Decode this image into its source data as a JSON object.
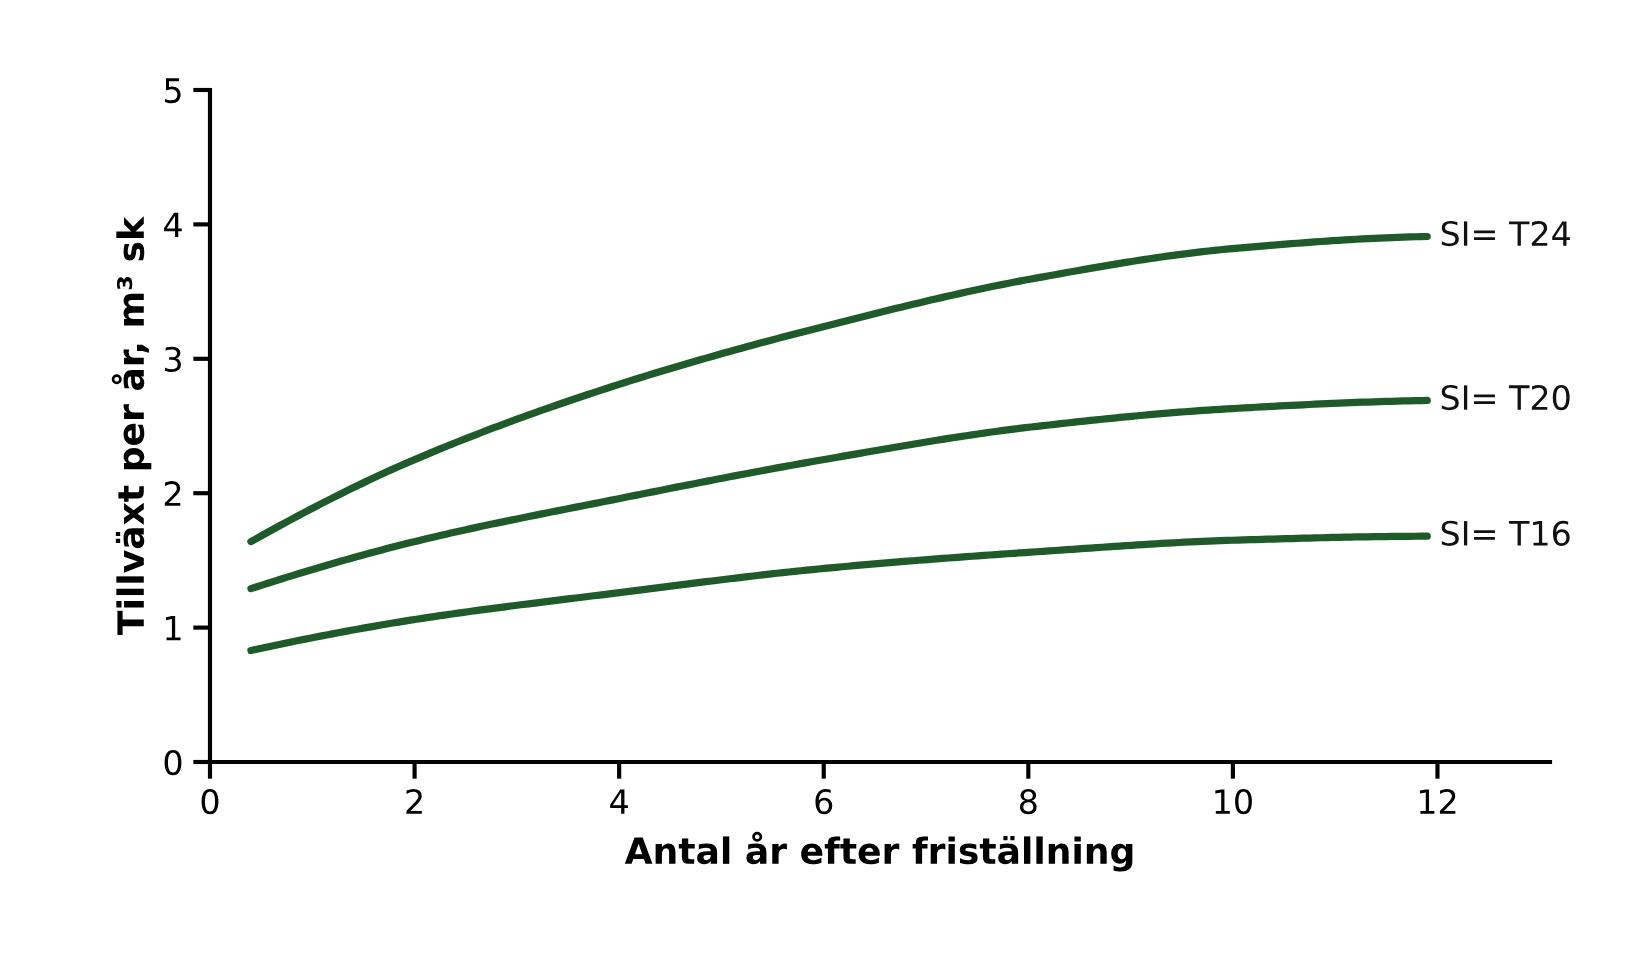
{
  "chart_data": {
    "type": "line",
    "xlabel": "Antal år efter friställning",
    "ylabel": "Tillväxt per år, m³ sk",
    "xlim": [
      0,
      13.1
    ],
    "xticks": [
      0,
      2,
      4,
      6,
      8,
      10,
      12
    ],
    "ylim": [
      0,
      5
    ],
    "yticks": [
      0,
      1,
      2,
      3,
      4,
      5
    ],
    "grid": false,
    "legend": false,
    "line_style": "solid",
    "marker": "none",
    "x": [
      0.4,
      2,
      4,
      6,
      8,
      10,
      11.9
    ],
    "series": [
      {
        "name": "SI= T24",
        "color": "#1f5a2a",
        "values": [
          1.64,
          2.25,
          2.81,
          3.24,
          3.59,
          3.82,
          3.91
        ]
      },
      {
        "name": "SI= T20",
        "color": "#1f5a2a",
        "values": [
          1.29,
          1.64,
          1.96,
          2.25,
          2.49,
          2.63,
          2.69
        ]
      },
      {
        "name": "SI= T16",
        "color": "#1f5a2a",
        "values": [
          0.83,
          1.06,
          1.26,
          1.44,
          1.56,
          1.65,
          1.68
        ]
      }
    ]
  }
}
